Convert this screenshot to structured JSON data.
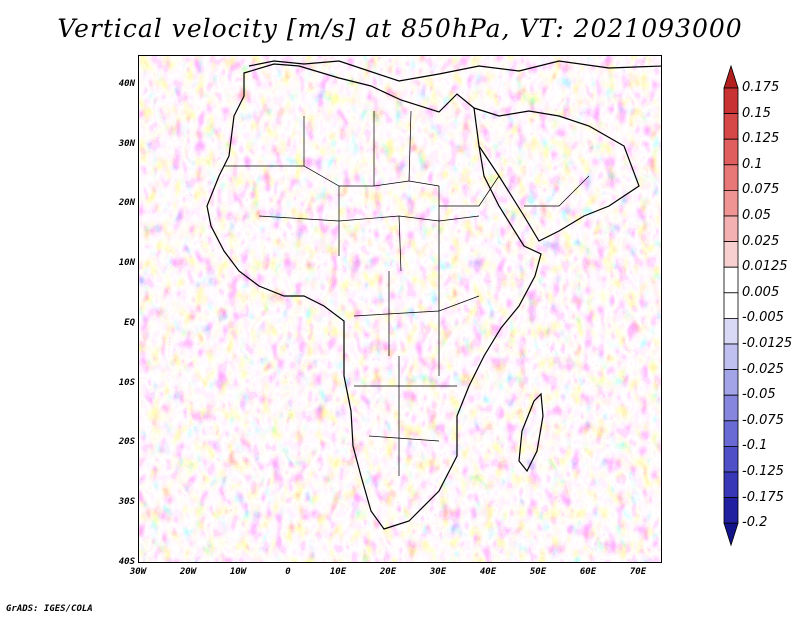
{
  "title": "Vertical velocity [m/s] at 850hPa, VT: 2021093000",
  "credit": "GrADS: IGES/COLA",
  "map": {
    "lat_labels": [
      "40N",
      "30N",
      "20N",
      "10N",
      "EQ",
      "10S",
      "20S",
      "30S",
      "40S"
    ],
    "lon_labels": [
      "30W",
      "20W",
      "10W",
      "0",
      "10E",
      "20E",
      "30E",
      "40E",
      "50E",
      "60E",
      "70E"
    ]
  },
  "colorbar": {
    "labels": [
      "0.175",
      "0.15",
      "0.125",
      "0.1",
      "0.075",
      "0.05",
      "0.025",
      "0.0125",
      "0.005",
      "-0.005",
      "-0.0125",
      "-0.025",
      "-0.05",
      "-0.075",
      "-0.1",
      "-0.125",
      "-0.175",
      "-0.2"
    ],
    "colors": [
      "#b21f1f",
      "#c83232",
      "#d64747",
      "#e05e5e",
      "#e87878",
      "#ef9393",
      "#f4b1b1",
      "#f9d0d0",
      "#ffffff",
      "#ffffff",
      "#d9d9f6",
      "#bfbff0",
      "#a3a3e8",
      "#8686df",
      "#6a6ad4",
      "#4f4fc8",
      "#3737b8",
      "#2020a0",
      "#14148a"
    ]
  }
}
